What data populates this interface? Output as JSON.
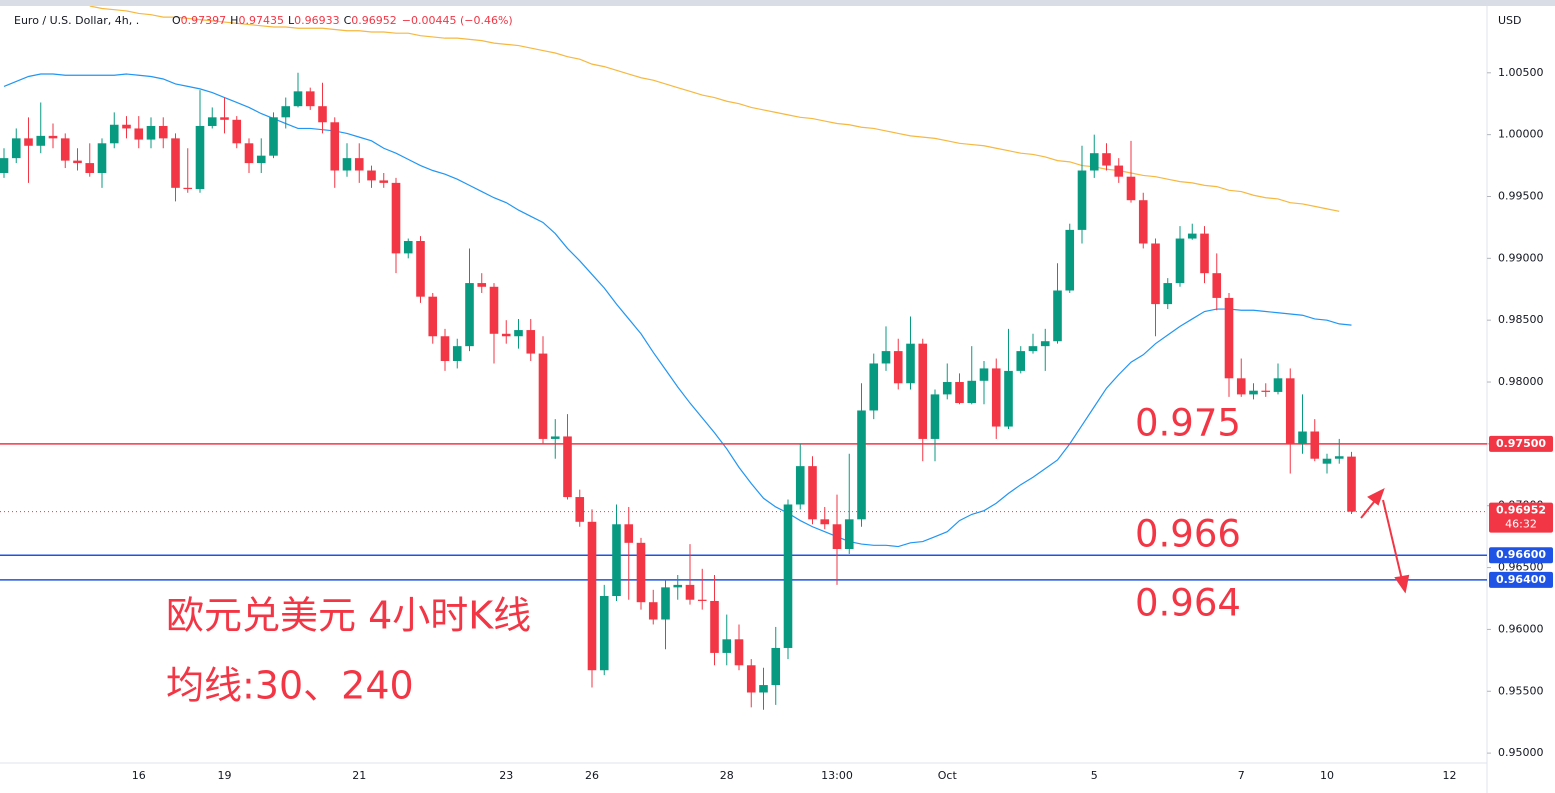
{
  "chart_data": {
    "type": "candlestick",
    "title": "Euro / U.S. Dollar, 4h, .",
    "header": [
      {
        "label": "O",
        "value": "0.97397"
      },
      {
        "label": "H",
        "value": "0.97435"
      },
      {
        "label": "L",
        "value": "0.96933"
      },
      {
        "label": "C",
        "value": "0.96952"
      }
    ],
    "change": "−0.00445 (−0.46%)",
    "currency": "USD",
    "up_color": "#089981",
    "down_color": "#f23645",
    "ylim": [
      0.9492,
      1.0104
    ],
    "yticks": [
      {
        "value": 0.95,
        "label": "0.95000"
      },
      {
        "value": 0.955,
        "label": "0.95500"
      },
      {
        "value": 0.96,
        "label": "0.96000"
      },
      {
        "value": 0.965,
        "label": "0.96500"
      },
      {
        "value": 0.97,
        "label": "0.97000"
      },
      {
        "value": 0.975,
        "label": "0.97500"
      },
      {
        "value": 0.98,
        "label": "0.98000"
      },
      {
        "value": 0.985,
        "label": "0.98500"
      },
      {
        "value": 0.99,
        "label": "0.99000"
      },
      {
        "value": 0.995,
        "label": "0.99500"
      },
      {
        "value": 1.0,
        "label": "1.00000"
      },
      {
        "value": 1.005,
        "label": "1.00500"
      }
    ],
    "categories": [
      null,
      null,
      null,
      null,
      null,
      null,
      null,
      null,
      null,
      null,
      null,
      "16",
      null,
      null,
      null,
      null,
      null,
      null,
      "19",
      null,
      null,
      null,
      null,
      null,
      null,
      null,
      null,
      null,
      null,
      "21",
      null,
      null,
      null,
      null,
      null,
      null,
      null,
      null,
      null,
      null,
      null,
      "23",
      null,
      null,
      null,
      null,
      null,
      null,
      "26",
      null,
      null,
      null,
      null,
      null,
      null,
      null,
      null,
      null,
      null,
      "28",
      null,
      null,
      null,
      null,
      null,
      null,
      null,
      null,
      "13:00",
      null,
      null,
      null,
      null,
      null,
      null,
      null,
      null,
      "Oct",
      null,
      null,
      null,
      null,
      null,
      null,
      null,
      null,
      null,
      null,
      null,
      "5",
      null,
      null,
      null,
      null,
      null,
      null,
      null,
      null,
      null,
      null,
      null,
      "7",
      null,
      null,
      null,
      null,
      null,
      null,
      "10",
      null,
      null,
      null,
      null,
      null,
      null,
      null,
      null,
      null,
      "12",
      null
    ],
    "open": [
      0.9969,
      0.9981,
      0.9997,
      0.9991,
      0.9999,
      0.9997,
      0.9979,
      0.9977,
      0.9969,
      0.9993,
      1.0008,
      1.0005,
      0.9996,
      1.0007,
      0.9997,
      0.9957,
      0.9956,
      1.0007,
      1.0014,
      1.0012,
      0.9993,
      0.9977,
      0.9983,
      1.0014,
      1.0023,
      1.0035,
      1.0023,
      1.001,
      0.9971,
      0.9981,
      0.9971,
      0.9963,
      0.9961,
      0.9904,
      0.9914,
      0.9869,
      0.9837,
      0.9817,
      0.9829,
      0.988,
      0.9877,
      0.9839,
      0.9837,
      0.9842,
      0.9823,
      0.9754,
      0.9756,
      0.9707,
      0.9687,
      0.9567,
      0.9627,
      0.9685,
      0.967,
      0.9622,
      0.9608,
      0.9634,
      0.9636,
      0.9624,
      0.9623,
      0.9581,
      0.9592,
      0.9571,
      0.9549,
      0.9555,
      0.9585,
      0.9701,
      0.9732,
      0.9689,
      0.9685,
      0.9665,
      0.9689,
      0.9777,
      0.9815,
      0.9825,
      0.9799,
      0.9831,
      0.9754,
      0.979,
      0.98,
      0.9783,
      0.9801,
      0.9811,
      0.9764,
      0.9809,
      0.9825,
      0.9829,
      0.9833,
      0.9874,
      0.9923,
      0.9971,
      0.9985,
      0.9975,
      0.9966,
      0.9947,
      0.9912,
      0.9863,
      0.988,
      0.9916,
      0.992,
      0.9888,
      0.9868,
      0.9803,
      0.979,
      0.9793,
      0.9792,
      0.9803,
      0.975,
      0.976,
      0.9734,
      0.9738,
      0.97397,
      null,
      null,
      null,
      null,
      null,
      null,
      null,
      null,
      null
    ],
    "high": [
      0.9989,
      1.0005,
      1.0014,
      1.0026,
      1.0009,
      1.0001,
      0.9989,
      0.9993,
      0.9997,
      1.0018,
      1.0015,
      1.0015,
      1.0014,
      1.0014,
      1.0001,
      0.9989,
      1.0036,
      1.0022,
      1.003,
      1.0015,
      0.9997,
      0.9997,
      1.0018,
      1.003,
      1.005,
      1.0038,
      1.0042,
      1.0014,
      0.9993,
      0.9993,
      0.9975,
      0.9969,
      0.9965,
      0.9916,
      0.9918,
      0.9872,
      0.9843,
      0.9835,
      0.9908,
      0.9888,
      0.988,
      0.985,
      0.9851,
      0.9851,
      0.9837,
      0.977,
      0.9774,
      0.9713,
      0.9697,
      0.9636,
      0.9701,
      0.9699,
      0.9674,
      0.9632,
      0.964,
      0.9644,
      0.9669,
      0.9649,
      0.9644,
      0.9612,
      0.9604,
      0.9576,
      0.9569,
      0.9602,
      0.9705,
      0.975,
      0.974,
      0.9699,
      0.9709,
      0.9742,
      0.9799,
      0.9823,
      0.9845,
      0.9835,
      0.9853,
      0.9835,
      0.9794,
      0.9815,
      0.9807,
      0.9829,
      0.9817,
      0.9819,
      0.9843,
      0.9829,
      0.9839,
      0.9843,
      0.9896,
      0.9928,
      0.9991,
      1.0,
      0.9993,
      0.9981,
      0.9995,
      0.9953,
      0.9916,
      0.9884,
      0.9926,
      0.9928,
      0.9926,
      0.9904,
      0.9872,
      0.9819,
      0.9799,
      0.9799,
      0.9815,
      0.9811,
      0.979,
      0.977,
      0.9742,
      0.9754,
      0.97435,
      null,
      null,
      null,
      null,
      null,
      null,
      null,
      null,
      null
    ],
    "low": [
      0.9965,
      0.9977,
      0.9961,
      0.9985,
      0.9989,
      0.9973,
      0.9971,
      0.9966,
      0.9957,
      0.9989,
      0.9997,
      0.9989,
      0.9989,
      0.9989,
      0.9946,
      0.9953,
      0.9953,
      1.0005,
      1.0001,
      0.9989,
      0.9969,
      0.9969,
      0.9981,
      1.0005,
      1.0022,
      1.002,
      1.0001,
      0.9957,
      0.9966,
      0.9961,
      0.9957,
      0.9957,
      0.9888,
      0.99,
      0.9864,
      0.9831,
      0.9809,
      0.9811,
      0.9825,
      0.9872,
      0.9815,
      0.9831,
      0.9827,
      0.9817,
      0.975,
      0.9738,
      0.9705,
      0.9683,
      0.9553,
      0.9563,
      0.9623,
      0.9624,
      0.9616,
      0.9604,
      0.9584,
      0.9624,
      0.962,
      0.9616,
      0.9571,
      0.9571,
      0.9567,
      0.9537,
      0.9535,
      0.9539,
      0.9576,
      0.9697,
      0.9685,
      0.9681,
      0.9636,
      0.9661,
      0.9683,
      0.977,
      0.9809,
      0.9794,
      0.9794,
      0.9736,
      0.9736,
      0.9786,
      0.9782,
      0.9782,
      0.9782,
      0.9754,
      0.9762,
      0.9807,
      0.9823,
      0.9809,
      0.9831,
      0.9872,
      0.9912,
      0.9965,
      0.9971,
      0.9961,
      0.9945,
      0.9908,
      0.9837,
      0.9859,
      0.9877,
      0.9915,
      0.988,
      0.9858,
      0.9788,
      0.9788,
      0.9786,
      0.9788,
      0.979,
      0.9726,
      0.9742,
      0.9736,
      0.9726,
      0.9734,
      0.96933,
      null,
      null,
      null,
      null,
      null,
      null,
      null,
      null,
      null
    ],
    "close": [
      0.9981,
      0.9997,
      0.9991,
      0.9999,
      0.9997,
      0.9979,
      0.9977,
      0.9969,
      0.9993,
      1.0008,
      1.0005,
      0.9996,
      1.0007,
      0.9997,
      0.9957,
      0.9956,
      1.0007,
      1.0014,
      1.0012,
      0.9993,
      0.9977,
      0.9983,
      1.0014,
      1.0023,
      1.0035,
      1.0023,
      1.001,
      0.9971,
      0.9981,
      0.9971,
      0.9963,
      0.9961,
      0.9904,
      0.9914,
      0.9869,
      0.9837,
      0.9817,
      0.9829,
      0.988,
      0.9877,
      0.9839,
      0.9837,
      0.9842,
      0.9823,
      0.9754,
      0.9756,
      0.9707,
      0.9687,
      0.9567,
      0.9627,
      0.9685,
      0.967,
      0.9622,
      0.9608,
      0.9634,
      0.9636,
      0.9624,
      0.9623,
      0.9581,
      0.9592,
      0.9571,
      0.9549,
      0.9555,
      0.9585,
      0.9701,
      0.9732,
      0.9689,
      0.9685,
      0.9665,
      0.9689,
      0.9777,
      0.9815,
      0.9825,
      0.9799,
      0.9831,
      0.9754,
      0.979,
      0.98,
      0.9783,
      0.9801,
      0.9811,
      0.9764,
      0.9809,
      0.9825,
      0.9829,
      0.9833,
      0.9874,
      0.9923,
      0.9971,
      0.9985,
      0.9975,
      0.9966,
      0.9947,
      0.9912,
      0.9863,
      0.988,
      0.9916,
      0.992,
      0.9888,
      0.9868,
      0.9803,
      0.979,
      0.9793,
      0.9792,
      0.9803,
      0.975,
      0.976,
      0.9738,
      0.9738,
      0.974,
      0.96952,
      null,
      null,
      null,
      null,
      null,
      null,
      null,
      null,
      null
    ],
    "series": [
      {
        "color": "#2196f3",
        "values": [
          1.0039,
          1.0043,
          1.0047,
          1.0049,
          1.0049,
          1.0048,
          1.0048,
          1.0048,
          1.0048,
          1.0048,
          1.0049,
          1.0048,
          1.0047,
          1.0045,
          1.0041,
          1.0039,
          1.0037,
          1.0034,
          1.003,
          1.0026,
          1.0022,
          1.0017,
          1.0013,
          1.0009,
          1.0005,
          1.0005,
          1.0004,
          1.0003,
          1.0001,
          0.9998,
          0.9995,
          0.9989,
          0.9985,
          0.998,
          0.9975,
          0.9971,
          0.9968,
          0.9964,
          0.9959,
          0.9954,
          0.9949,
          0.9945,
          0.9939,
          0.9934,
          0.9929,
          0.992,
          0.9908,
          0.9898,
          0.9887,
          0.9876,
          0.9863,
          0.9851,
          0.9839,
          0.9824,
          0.981,
          0.9796,
          0.9783,
          0.9771,
          0.9759,
          0.9746,
          0.9731,
          0.9718,
          0.9706,
          0.9699,
          0.9694,
          0.9688,
          0.9683,
          0.9679,
          0.9675,
          0.9671,
          0.9669,
          0.9668,
          0.9668,
          0.9667,
          0.967,
          0.9671,
          0.9675,
          0.9679,
          0.9688,
          0.9693,
          0.9696,
          0.9702,
          0.971,
          0.9717,
          0.9723,
          0.973,
          0.9737,
          0.975,
          0.9765,
          0.978,
          0.9795,
          0.9806,
          0.9816,
          0.9822,
          0.9831,
          0.9838,
          0.9845,
          0.9851,
          0.9857,
          0.9859,
          0.9859,
          0.9858,
          0.9858,
          0.9857,
          0.9856,
          0.9855,
          0.9854,
          0.9851,
          0.985,
          0.9847,
          0.9846,
          null,
          null,
          null,
          null,
          null,
          null,
          null,
          null,
          null
        ]
      },
      {
        "color": "#f5b841",
        "values": [
          null,
          null,
          null,
          null,
          null,
          null,
          null,
          1.0104,
          1.0102,
          1.0101,
          1.01,
          1.0098,
          1.0097,
          1.0095,
          1.0095,
          1.0094,
          1.0093,
          1.0092,
          1.0091,
          1.009,
          1.0089,
          1.0088,
          1.0087,
          1.0087,
          1.0086,
          1.0086,
          1.0086,
          1.0085,
          1.0084,
          1.0084,
          1.0083,
          1.0083,
          1.0082,
          1.0082,
          1.008,
          1.0079,
          1.0078,
          1.0078,
          1.0077,
          1.0076,
          1.0074,
          1.0073,
          1.0072,
          1.007,
          1.0068,
          1.0066,
          1.0063,
          1.0061,
          1.0057,
          1.0055,
          1.0052,
          1.0049,
          1.0046,
          1.0044,
          1.0041,
          1.0038,
          1.0035,
          1.0032,
          1.003,
          1.0027,
          1.0025,
          1.0022,
          1.002,
          1.0018,
          1.0016,
          1.0014,
          1.0013,
          1.0011,
          1.0009,
          1.0008,
          1.0006,
          1.0005,
          1.0003,
          1.0001,
          0.9999,
          0.9998,
          0.9997,
          0.9995,
          0.9993,
          0.9992,
          0.9991,
          0.9989,
          0.9987,
          0.9985,
          0.9984,
          0.9982,
          0.9979,
          0.9978,
          0.9975,
          0.9974,
          0.9972,
          0.9971,
          0.9969,
          0.9967,
          0.9966,
          0.9964,
          0.9962,
          0.9961,
          0.9959,
          0.9958,
          0.9955,
          0.9954,
          0.9951,
          0.9949,
          0.9948,
          0.9945,
          0.9944,
          0.9942,
          0.994,
          0.9938,
          null,
          null,
          null,
          null,
          null,
          null,
          null,
          null,
          null,
          null
        ]
      }
    ],
    "levels": [
      {
        "value": 0.975,
        "label": "0.97500",
        "color": "#f23645"
      },
      {
        "value": 0.966,
        "label": "0.96600",
        "color": "#1e53e5"
      },
      {
        "value": 0.964,
        "label": "0.96400",
        "color": "#1e53e5"
      }
    ],
    "last_price": {
      "value": 0.96952,
      "label": "0.96952",
      "countdown": "46:32",
      "color": "#f23645"
    },
    "annotations": [
      "0.975",
      "0.966",
      "0.964"
    ],
    "notes": [
      "欧元兑美元 4小时K线",
      "均线:30、240"
    ]
  }
}
